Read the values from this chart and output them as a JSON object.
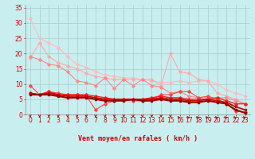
{
  "xlabel": "Vent moyen/en rafales ( km/h )",
  "bg_color": "#c8eef0",
  "grid_color": "#aacccc",
  "xlim": [
    -0.5,
    23.5
  ],
  "ylim": [
    0,
    36
  ],
  "yticks": [
    0,
    5,
    10,
    15,
    20,
    25,
    30,
    35
  ],
  "xticks": [
    0,
    1,
    2,
    3,
    4,
    5,
    6,
    7,
    8,
    9,
    10,
    11,
    12,
    13,
    14,
    15,
    16,
    17,
    18,
    19,
    20,
    21,
    22,
    23
  ],
  "series": [
    {
      "x": [
        0,
        1,
        2,
        3,
        4,
        5,
        6,
        7,
        8,
        9,
        10,
        11,
        12,
        13,
        14,
        15,
        16,
        17,
        18,
        19,
        20,
        21,
        22,
        23
      ],
      "y": [
        31.5,
        25,
        23.5,
        22,
        19,
        16.5,
        15.5,
        14,
        13,
        12.5,
        12,
        12,
        11.5,
        11,
        10.5,
        10.5,
        11,
        10.5,
        11,
        11,
        10,
        8,
        7,
        6
      ],
      "color": "#ffbbbb",
      "lw": 0.8,
      "marker": "D",
      "ms": 1.8
    },
    {
      "x": [
        0,
        1,
        2,
        3,
        4,
        5,
        6,
        7,
        8,
        9,
        10,
        11,
        12,
        13,
        14,
        15,
        16,
        17,
        18,
        19,
        20,
        21,
        22,
        23
      ],
      "y": [
        18.5,
        23.5,
        19,
        17,
        16,
        15,
        13.5,
        12.5,
        12,
        11.5,
        11.5,
        11.5,
        11.5,
        11.5,
        9.5,
        20,
        14,
        13.5,
        11.5,
        11,
        7,
        6,
        5,
        3.5
      ],
      "color": "#ffaaaa",
      "lw": 0.8,
      "marker": "D",
      "ms": 1.8
    },
    {
      "x": [
        0,
        1,
        2,
        3,
        4,
        5,
        6,
        7,
        8,
        9,
        10,
        11,
        12,
        13,
        14,
        15,
        16,
        17,
        18,
        19,
        20,
        21,
        22,
        23
      ],
      "y": [
        19,
        18,
        16.5,
        16,
        14,
        11,
        10.5,
        9.5,
        12,
        8.5,
        11.5,
        9.5,
        11.5,
        9.5,
        9,
        7,
        7.5,
        6,
        5.5,
        5.5,
        5.5,
        5.5,
        4.5,
        3.5
      ],
      "color": "#ff8888",
      "lw": 0.8,
      "marker": "D",
      "ms": 1.8
    },
    {
      "x": [
        0,
        1,
        2,
        3,
        4,
        5,
        6,
        7,
        8,
        9,
        10,
        11,
        12,
        13,
        14,
        15,
        16,
        17,
        18,
        19,
        20,
        21,
        22,
        23
      ],
      "y": [
        9.5,
        6.5,
        7.5,
        7,
        6.5,
        6.5,
        6,
        1.5,
        3.5,
        4.5,
        5,
        4.5,
        4.5,
        5,
        6.5,
        6.5,
        7.5,
        7.5,
        5.5,
        6,
        5,
        3.5,
        1,
        0.8
      ],
      "color": "#ff4444",
      "lw": 0.8,
      "marker": "D",
      "ms": 1.8
    },
    {
      "x": [
        0,
        1,
        2,
        3,
        4,
        5,
        6,
        7,
        8,
        9,
        10,
        11,
        12,
        13,
        14,
        15,
        16,
        17,
        18,
        19,
        20,
        21,
        22,
        23
      ],
      "y": [
        7,
        6.5,
        7.5,
        6.5,
        6.5,
        6.5,
        6.5,
        6,
        5.5,
        5,
        5,
        5,
        5,
        5.5,
        6,
        5.5,
        5.5,
        5,
        5,
        5,
        5.5,
        4.5,
        3.5,
        3.5
      ],
      "color": "#ee2222",
      "lw": 1.0,
      "marker": "D",
      "ms": 1.8
    },
    {
      "x": [
        0,
        1,
        2,
        3,
        4,
        5,
        6,
        7,
        8,
        9,
        10,
        11,
        12,
        13,
        14,
        15,
        16,
        17,
        18,
        19,
        20,
        21,
        22,
        23
      ],
      "y": [
        7,
        6.5,
        7,
        6.5,
        6,
        6,
        6,
        5.5,
        5,
        5,
        5,
        5,
        5,
        5,
        5.5,
        5,
        5,
        4.5,
        4.5,
        5,
        4.5,
        4,
        2.5,
        1.5
      ],
      "color": "#cc0000",
      "lw": 1.2,
      "marker": "s",
      "ms": 1.8
    },
    {
      "x": [
        0,
        1,
        2,
        3,
        4,
        5,
        6,
        7,
        8,
        9,
        10,
        11,
        12,
        13,
        14,
        15,
        16,
        17,
        18,
        19,
        20,
        21,
        22,
        23
      ],
      "y": [
        6.5,
        6.5,
        6.5,
        6,
        5.5,
        5.5,
        5.5,
        5,
        4.5,
        4.5,
        4.5,
        5,
        4.5,
        4.5,
        5,
        4.5,
        4.5,
        4,
        4,
        4.5,
        4,
        3.5,
        1.5,
        0.5
      ],
      "color": "#990000",
      "lw": 1.5,
      "marker": "s",
      "ms": 1.8
    }
  ],
  "arrow_color": "#cc0000",
  "axis_fontsize": 6,
  "tick_fontsize": 5.5
}
